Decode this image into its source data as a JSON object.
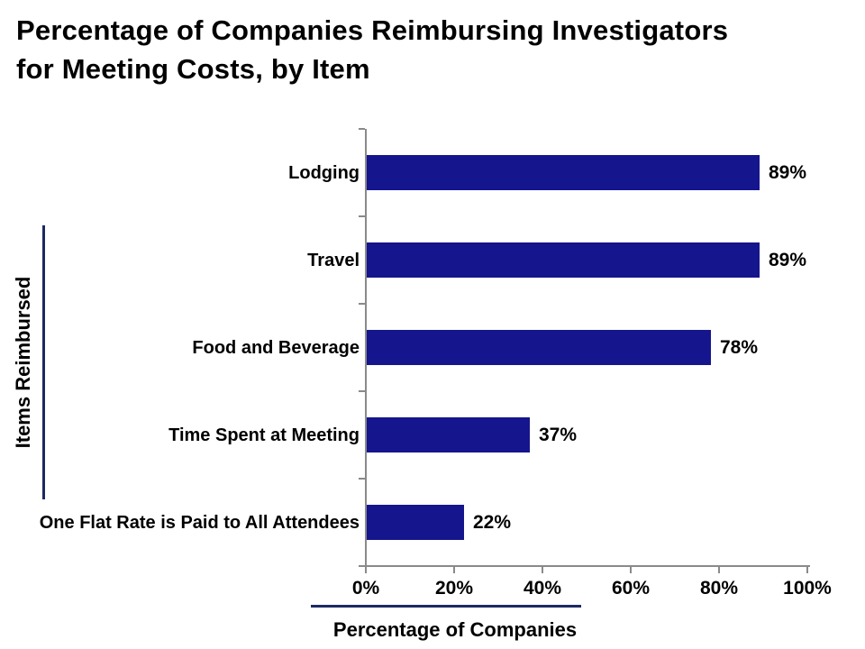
{
  "title": {
    "lines": [
      "Percentage of Companies Reimbursing Investigators",
      "for Meeting Costs, by Item"
    ]
  },
  "chart_data": {
    "type": "bar",
    "orientation": "horizontal",
    "categories": [
      "Lodging",
      "Travel",
      "Food and Beverage",
      "Time Spent at Meeting",
      "One Flat Rate is Paid to All Attendees"
    ],
    "values": [
      89,
      89,
      78,
      37,
      22
    ],
    "value_labels": [
      "89%",
      "89%",
      "78%",
      "37%",
      "22%"
    ],
    "xlabel": "Percentage of Companies",
    "ylabel": "Items Reimbursed",
    "xlim": [
      0,
      100
    ],
    "x_tick_values": [
      0,
      20,
      40,
      60,
      80,
      100
    ],
    "x_ticks": [
      "0%",
      "20%",
      "40%",
      "60%",
      "80%",
      "100%"
    ],
    "grid": false,
    "legend": false,
    "colors": {
      "bar": "#15158d",
      "accent_line": "#1c2a63",
      "axis": "#8a8a8a",
      "text": "#000000",
      "background": "#ffffff"
    }
  }
}
